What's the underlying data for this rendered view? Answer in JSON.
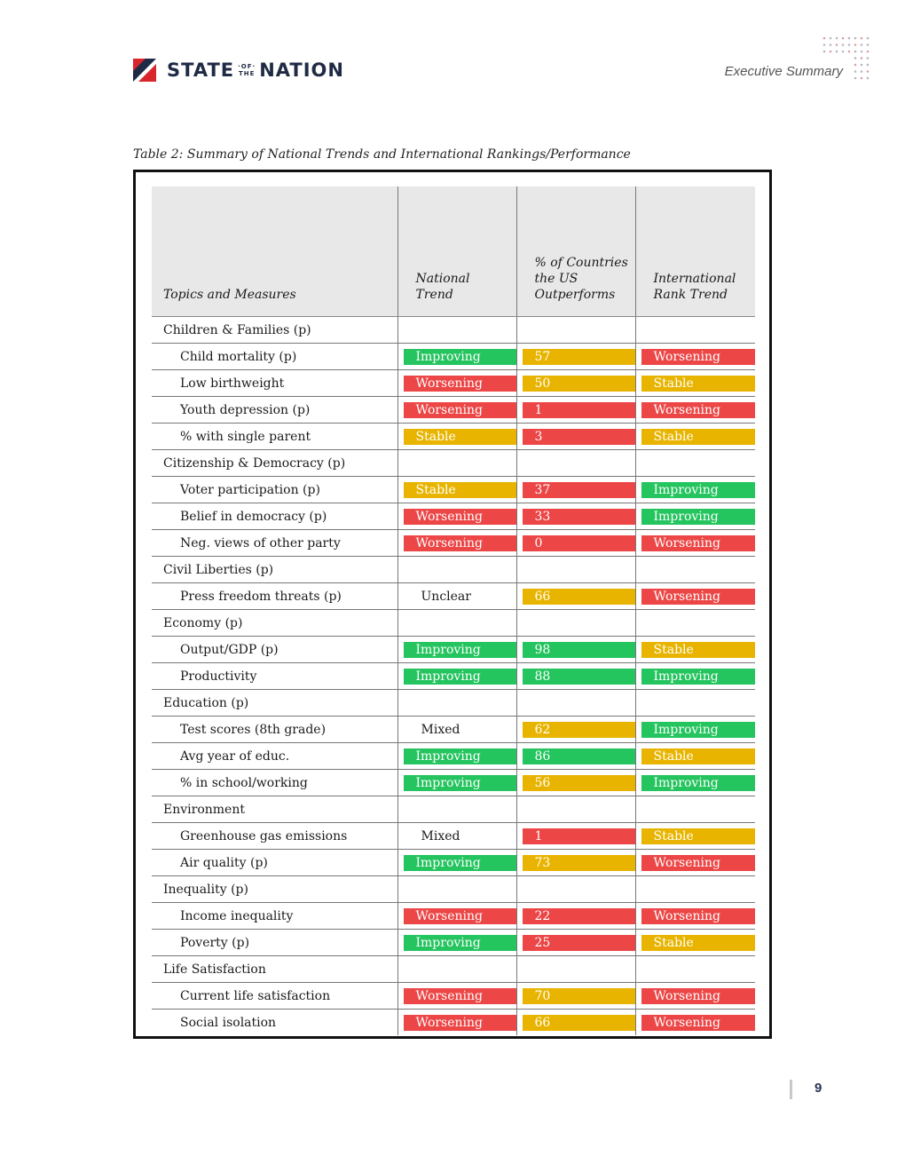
{
  "header": {
    "logo_left": "STATE",
    "logo_of_top": "·OF·",
    "logo_of_bottom": "THE",
    "logo_right": "NATION",
    "section": "Executive Summary"
  },
  "caption": "Table 2: Summary of National Trends and International Rankings/Performance",
  "colors": {
    "green": "#24c45e",
    "yellow": "#e8b400",
    "red": "#ec4646",
    "header_bg": "#e8e8e8",
    "brand_navy": "#1f2a44",
    "brand_red": "#d9262c"
  },
  "table": {
    "headers": {
      "topics": "Topics and Measures",
      "national_trend": "National Trend",
      "pct_outperforms": "% of Countries the US Outperforms",
      "intl_rank": "International Rank Trend"
    },
    "rows": [
      {
        "kind": "topic",
        "label": "Children & Families (p)"
      },
      {
        "kind": "measure",
        "label": "Child mortality (p)",
        "trend": "Improving",
        "trend_color": "green",
        "pct": "57",
        "pct_color": "yellow",
        "rank": "Worsening",
        "rank_color": "red"
      },
      {
        "kind": "measure",
        "label": "Low birthweight",
        "trend": "Worsening",
        "trend_color": "red",
        "pct": "50",
        "pct_color": "yellow",
        "rank": "Stable",
        "rank_color": "yellow"
      },
      {
        "kind": "measure",
        "label": "Youth depression (p)",
        "trend": "Worsening",
        "trend_color": "red",
        "pct": "1",
        "pct_color": "red",
        "rank": "Worsening",
        "rank_color": "red"
      },
      {
        "kind": "measure",
        "label": "% with single parent",
        "trend": "Stable",
        "trend_color": "yellow",
        "pct": "3",
        "pct_color": "red",
        "rank": "Stable",
        "rank_color": "yellow"
      },
      {
        "kind": "topic",
        "label": "Citizenship & Democracy (p)"
      },
      {
        "kind": "measure",
        "label": "Voter participation (p)",
        "trend": "Stable",
        "trend_color": "yellow",
        "pct": "37",
        "pct_color": "red",
        "rank": "Improving",
        "rank_color": "green"
      },
      {
        "kind": "measure",
        "label": "Belief in democracy (p)",
        "trend": "Worsening",
        "trend_color": "red",
        "pct": "33",
        "pct_color": "red",
        "rank": "Improving",
        "rank_color": "green"
      },
      {
        "kind": "measure",
        "label": "Neg. views of other party",
        "trend": "Worsening",
        "trend_color": "red",
        "pct": "0",
        "pct_color": "red",
        "rank": "Worsening",
        "rank_color": "red"
      },
      {
        "kind": "topic",
        "label": "Civil Liberties (p)"
      },
      {
        "kind": "measure",
        "label": "Press freedom threats (p)",
        "trend": "Unclear",
        "trend_color": "none",
        "pct": "66",
        "pct_color": "yellow",
        "rank": "Worsening",
        "rank_color": "red"
      },
      {
        "kind": "topic",
        "label": "Economy (p)"
      },
      {
        "kind": "measure",
        "label": "Output/GDP (p)",
        "trend": "Improving",
        "trend_color": "green",
        "pct": "98",
        "pct_color": "green",
        "rank": "Stable",
        "rank_color": "yellow"
      },
      {
        "kind": "measure",
        "label": "Productivity",
        "trend": "Improving",
        "trend_color": "green",
        "pct": "88",
        "pct_color": "green",
        "rank": "Improving",
        "rank_color": "green"
      },
      {
        "kind": "topic",
        "label": "Education (p)"
      },
      {
        "kind": "measure",
        "label": "Test scores (8th grade)",
        "trend": "Mixed",
        "trend_color": "none",
        "pct": "62",
        "pct_color": "yellow",
        "rank": "Improving",
        "rank_color": "green"
      },
      {
        "kind": "measure",
        "label": "Avg year of educ.",
        "trend": "Improving",
        "trend_color": "green",
        "pct": "86",
        "pct_color": "green",
        "rank": "Stable",
        "rank_color": "yellow"
      },
      {
        "kind": "measure",
        "label": "% in school/working",
        "trend": "Improving",
        "trend_color": "green",
        "pct": "56",
        "pct_color": "yellow",
        "rank": "Improving",
        "rank_color": "green"
      },
      {
        "kind": "topic",
        "label": "Environment"
      },
      {
        "kind": "measure",
        "label": "Greenhouse gas emissions",
        "trend": "Mixed",
        "trend_color": "none",
        "pct": "1",
        "pct_color": "red",
        "rank": "Stable",
        "rank_color": "yellow"
      },
      {
        "kind": "measure",
        "label": "Air quality (p)",
        "trend": "Improving",
        "trend_color": "green",
        "pct": "73",
        "pct_color": "yellow",
        "rank": "Worsening",
        "rank_color": "red"
      },
      {
        "kind": "topic",
        "label": "Inequality (p)"
      },
      {
        "kind": "measure",
        "label": "Income inequality",
        "trend": "Worsening",
        "trend_color": "red",
        "pct": "22",
        "pct_color": "red",
        "rank": "Worsening",
        "rank_color": "red"
      },
      {
        "kind": "measure",
        "label": "Poverty (p)",
        "trend": "Improving",
        "trend_color": "green",
        "pct": "25",
        "pct_color": "red",
        "rank": "Stable",
        "rank_color": "yellow"
      },
      {
        "kind": "topic",
        "label": "Life Satisfaction"
      },
      {
        "kind": "measure",
        "label": "Current life satisfaction",
        "trend": "Worsening",
        "trend_color": "red",
        "pct": "70",
        "pct_color": "yellow",
        "rank": "Worsening",
        "rank_color": "red"
      },
      {
        "kind": "measure",
        "label": "Social isolation",
        "trend": "Worsening",
        "trend_color": "red",
        "pct": "66",
        "pct_color": "yellow",
        "rank": "Worsening",
        "rank_color": "red"
      }
    ]
  },
  "footer": {
    "page_number": "9"
  }
}
